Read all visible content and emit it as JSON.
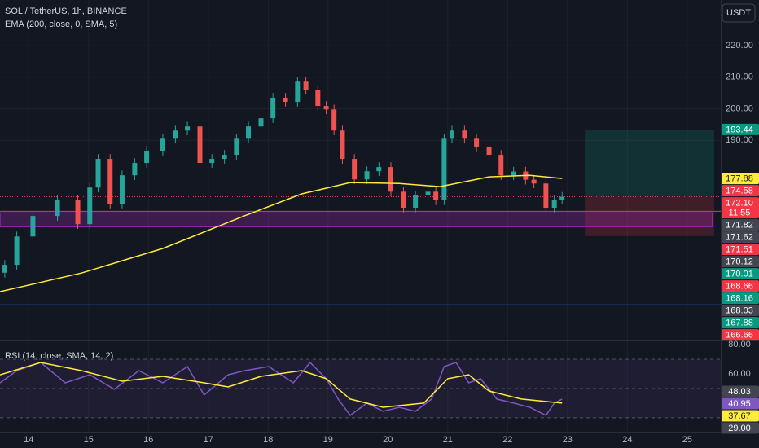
{
  "chart_data": [
    {
      "type": "candlestick",
      "title": "SOL / TetherUS, 1h, BINANCE",
      "currency_button": "USDT",
      "x": [
        13.6,
        13.8,
        14.07,
        14.48,
        14.82,
        15.02,
        15.16,
        15.36,
        15.56,
        15.77,
        15.97,
        16.24,
        16.45,
        16.65,
        16.86,
        17.06,
        17.27,
        17.47,
        17.67,
        17.88,
        18.08,
        18.29,
        18.49,
        18.63,
        18.83,
        18.97,
        19.1,
        19.24,
        19.44,
        19.65,
        19.85,
        20.05,
        20.26,
        20.46,
        20.67,
        20.8,
        20.94,
        21.07,
        21.28,
        21.48,
        21.69,
        21.89,
        22.1,
        22.3,
        22.44,
        22.64,
        22.78,
        22.91
      ],
      "open": [
        148.0,
        150.5,
        159.5,
        166.0,
        171.2,
        163.4,
        175.0,
        184.1,
        169.9,
        178.9,
        182.8,
        186.7,
        190.5,
        193.1,
        194.4,
        182.8,
        184.1,
        185.4,
        190.5,
        194.4,
        197.0,
        203.5,
        202.2,
        208.6,
        206.0,
        200.9,
        199.8,
        193.1,
        184.1,
        177.6,
        180.2,
        181.5,
        173.7,
        168.6,
        172.5,
        173.7,
        171.0,
        190.5,
        193.1,
        190.5,
        188.0,
        185.4,
        178.9,
        180.1,
        177.5,
        176.3,
        168.6,
        171.2
      ],
      "high": [
        152.0,
        161.0,
        167.5,
        172.7,
        172.7,
        176.5,
        185.6,
        185.6,
        180.4,
        184.3,
        188.2,
        192.0,
        194.6,
        195.9,
        195.9,
        185.6,
        186.9,
        192.0,
        195.9,
        198.5,
        205.0,
        205.0,
        210.1,
        210.1,
        207.5,
        202.4,
        201.3,
        194.6,
        185.6,
        181.7,
        183.0,
        183.0,
        175.2,
        174.0,
        175.2,
        175.2,
        192.0,
        194.6,
        194.6,
        192.0,
        189.5,
        186.9,
        181.6,
        181.6,
        179.0,
        177.8,
        172.7,
        173.6
      ],
      "low": [
        146.5,
        149.0,
        158.0,
        164.5,
        161.9,
        161.9,
        173.5,
        168.4,
        168.4,
        177.4,
        181.3,
        185.2,
        189.0,
        191.6,
        181.3,
        181.3,
        182.6,
        183.9,
        189.0,
        192.9,
        195.5,
        200.7,
        200.7,
        204.5,
        199.4,
        198.3,
        191.6,
        182.6,
        176.1,
        176.1,
        178.7,
        172.2,
        167.1,
        167.1,
        171.0,
        169.5,
        169.5,
        189.0,
        189.0,
        186.5,
        183.9,
        177.4,
        177.4,
        176.0,
        174.8,
        167.1,
        167.1,
        169.7
      ],
      "close": [
        150.5,
        159.5,
        166.0,
        171.2,
        163.4,
        175.0,
        184.1,
        169.9,
        178.9,
        182.8,
        186.7,
        190.5,
        193.1,
        194.4,
        182.8,
        184.1,
        185.4,
        190.5,
        194.4,
        197.0,
        203.5,
        202.2,
        208.6,
        206.0,
        200.9,
        199.8,
        193.1,
        184.1,
        177.6,
        180.2,
        181.5,
        173.7,
        168.6,
        172.5,
        173.7,
        171.0,
        190.5,
        193.1,
        190.5,
        188.0,
        185.4,
        178.9,
        180.1,
        177.5,
        176.3,
        168.6,
        171.2,
        172.1
      ],
      "up_color": "#26a69a",
      "down_color": "#ef5350",
      "series": [
        {
          "name": "EMA (200, close, 0, SMA, 5)",
          "color": "#ffeb3b",
          "x": [
            13.52,
            14.88,
            16.24,
            17.6,
            18.56,
            19.37,
            20.19,
            20.87,
            21.69,
            22.37,
            22.91
          ],
          "values": [
            142.0,
            147.9,
            155.7,
            166.0,
            173.0,
            176.6,
            176.3,
            175.3,
            178.4,
            178.9,
            177.9
          ]
        }
      ],
      "xlim": [
        13.52,
        25.56
      ],
      "ylim": [
        126.5,
        234.5
      ],
      "xticks": [
        14,
        15,
        16,
        17,
        18,
        19,
        20,
        21,
        22,
        23,
        24,
        25
      ],
      "yticks": [
        {
          "value": 220,
          "label": "220.00"
        },
        {
          "value": 210,
          "label": "210.00"
        },
        {
          "value": 200,
          "label": "200.00"
        },
        {
          "value": 190,
          "label": "190.00"
        }
      ],
      "grid": true,
      "grid_color": "#1e222d",
      "zones": [
        {
          "x0": 13.52,
          "x1": 25.42,
          "y0": 162.6,
          "y1": 167.0,
          "color": "#9c27b0"
        }
      ],
      "position": {
        "x0": 23.29,
        "x1": 25.45,
        "entry": 172.1,
        "target": 193.44,
        "stop": 159.6,
        "profit_color": "#089981",
        "loss_color": "#f23645"
      },
      "hlines": [
        {
          "value": 172.1,
          "color": "#f23645",
          "dash": true
        },
        {
          "value": 167.5,
          "color": "#f23645",
          "dash": false
        },
        {
          "value": 137.8,
          "color": "#2962ff",
          "dash": false
        }
      ],
      "price_badges": [
        {
          "value": 193.44,
          "label": "193.44",
          "color": "#089981"
        },
        {
          "value": 177.88,
          "label": "177.88",
          "color": "#ffeb3b"
        },
        {
          "value": 174.58,
          "label": "174.58",
          "color": "#f23645"
        },
        {
          "value": 172.1,
          "label": "172.10",
          "sub": "11:55",
          "color": "#f23645"
        },
        {
          "value": 171.82,
          "label": "171.82",
          "color": "#434651"
        },
        {
          "value": 171.62,
          "label": "171.62",
          "color": "#434651"
        },
        {
          "value": 171.51,
          "label": "171.51",
          "color": "#f23645"
        },
        {
          "value": 170.12,
          "label": "170.12",
          "color": "#434651"
        },
        {
          "value": 170.01,
          "label": "170.01",
          "color": "#089981"
        },
        {
          "value": 168.66,
          "label": "168.66",
          "color": "#f23645"
        },
        {
          "value": 168.16,
          "label": "168.16",
          "color": "#089981"
        },
        {
          "value": 168.03,
          "label": "168.03",
          "color": "#434651"
        },
        {
          "value": 167.88,
          "label": "167.88",
          "color": "#089981"
        },
        {
          "value": 166.66,
          "label": "166.66",
          "color": "#f23645"
        }
      ]
    },
    {
      "type": "line",
      "title": "RSI (14, close, SMA, 14, 2)",
      "series": [
        {
          "color": "#7e57c2",
          "x": [
            13.52,
            13.8,
            14.2,
            14.61,
            15.02,
            15.43,
            15.84,
            16.24,
            16.65,
            16.93,
            17.33,
            17.61,
            18.01,
            18.42,
            18.7,
            18.97,
            19.17,
            19.37,
            19.65,
            19.92,
            20.19,
            20.46,
            20.73,
            20.94,
            21.14,
            21.35,
            21.55,
            21.82,
            22.1,
            22.37,
            22.64,
            22.78,
            22.91
          ],
          "values": [
            53.9,
            62.2,
            67.8,
            53.9,
            59.4,
            49.4,
            62.2,
            53.9,
            65.0,
            45.6,
            59.4,
            62.2,
            65.0,
            53.9,
            67.8,
            56.7,
            42.8,
            31.7,
            40.0,
            34.4,
            37.2,
            34.4,
            42.8,
            65.0,
            67.8,
            53.9,
            56.7,
            42.8,
            40.0,
            37.2,
            31.7,
            40.0,
            42.8
          ]
        },
        {
          "color": "#ffeb3b",
          "x": [
            13.52,
            14.2,
            14.88,
            15.56,
            16.24,
            16.93,
            17.33,
            17.88,
            18.56,
            18.97,
            19.37,
            19.92,
            20.6,
            21.0,
            21.35,
            21.69,
            22.23,
            22.91
          ],
          "values": [
            59.4,
            67.8,
            62.2,
            55.0,
            58.3,
            53.9,
            51.1,
            58.3,
            62.2,
            56.7,
            42.8,
            37.2,
            40.0,
            56.7,
            59.4,
            48.3,
            42.8,
            40.0
          ]
        }
      ],
      "xlim": [
        13.52,
        25.56
      ],
      "ylim": [
        20.5,
        82.8
      ],
      "yticks": [
        {
          "value": 80,
          "label": "80.00"
        },
        {
          "value": 60,
          "label": "60.00"
        }
      ],
      "band_lines": [
        70,
        50,
        30
      ],
      "band_color": "#7e57c2",
      "price_badges": [
        {
          "value": 48.03,
          "label": "48.03",
          "color": "#434651"
        },
        {
          "value": 40.95,
          "label": "40.95",
          "color": "#7e57c2"
        },
        {
          "value": 37.67,
          "label": "37.67",
          "color": "#ffeb3b"
        },
        {
          "value": 29.0,
          "label": "29.00",
          "color": "#434651"
        }
      ]
    }
  ]
}
